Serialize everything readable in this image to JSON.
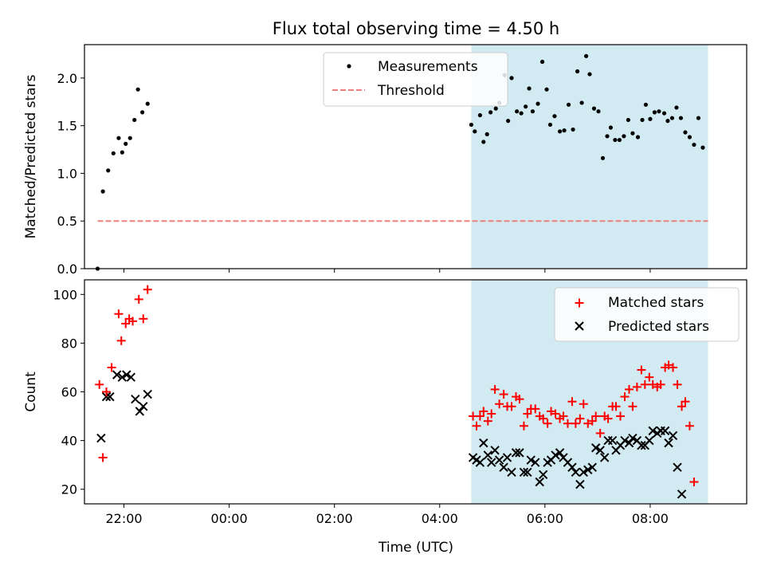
{
  "figure": {
    "title": "Flux total observing time = 4.50 h",
    "xlabel": "Time (UTC)"
  },
  "colors": {
    "band": "#add8e6",
    "threshold": "#f08080",
    "measurement": "#000000",
    "matched": "#ff0000",
    "predicted": "#000000"
  },
  "chart_data": [
    {
      "type": "scatter",
      "ylabel": "Matched/Predicted stars",
      "xlim": [
        "21:15",
        "09:50"
      ],
      "ylim": [
        0,
        2.35
      ],
      "x_ticks": [
        "22:00",
        "00:00",
        "02:00",
        "04:00",
        "06:00",
        "08:00"
      ],
      "x_tick_labels_shown": false,
      "y_ticks": [
        "0.0",
        "0.5",
        "1.0",
        "1.5",
        "2.0"
      ],
      "legend_position": "top-center",
      "shaded_interval": [
        "04:36",
        "09:06"
      ],
      "threshold": {
        "name": "Threshold",
        "value": 0.5,
        "x": [
          "21:30",
          "09:06"
        ]
      },
      "series": [
        {
          "name": "Measurements",
          "points": [
            [
              "21:30",
              0.0
            ],
            [
              "21:36",
              0.81
            ],
            [
              "21:42",
              1.03
            ],
            [
              "21:48",
              1.21
            ],
            [
              "21:54",
              1.37
            ],
            [
              "21:58",
              1.22
            ],
            [
              "22:02",
              1.31
            ],
            [
              "22:07",
              1.37
            ],
            [
              "22:12",
              1.56
            ],
            [
              "22:16",
              1.88
            ],
            [
              "22:21",
              1.64
            ],
            [
              "22:27",
              1.73
            ],
            [
              "04:36",
              1.51
            ],
            [
              "04:40",
              1.44
            ],
            [
              "04:46",
              1.61
            ],
            [
              "04:50",
              1.33
            ],
            [
              "04:54",
              1.41
            ],
            [
              "04:58",
              1.64
            ],
            [
              "05:04",
              1.68
            ],
            [
              "05:08",
              1.74
            ],
            [
              "05:14",
              2.03
            ],
            [
              "05:18",
              1.55
            ],
            [
              "05:22",
              2.0
            ],
            [
              "05:28",
              1.65
            ],
            [
              "05:33",
              1.63
            ],
            [
              "05:38",
              1.7
            ],
            [
              "05:42",
              1.89
            ],
            [
              "05:46",
              1.65
            ],
            [
              "05:52",
              1.73
            ],
            [
              "05:57",
              2.17
            ],
            [
              "06:02",
              1.88
            ],
            [
              "06:06",
              1.51
            ],
            [
              "06:11",
              1.6
            ],
            [
              "06:17",
              1.44
            ],
            [
              "06:22",
              1.45
            ],
            [
              "06:27",
              1.72
            ],
            [
              "06:32",
              1.46
            ],
            [
              "06:37",
              2.07
            ],
            [
              "06:42",
              1.74
            ],
            [
              "06:47",
              2.23
            ],
            [
              "06:51",
              2.04
            ],
            [
              "06:56",
              1.68
            ],
            [
              "07:01",
              1.65
            ],
            [
              "07:06",
              1.16
            ],
            [
              "07:11",
              1.39
            ],
            [
              "07:15",
              1.48
            ],
            [
              "07:20",
              1.35
            ],
            [
              "07:25",
              1.35
            ],
            [
              "07:30",
              1.39
            ],
            [
              "07:35",
              1.56
            ],
            [
              "07:40",
              1.42
            ],
            [
              "07:46",
              1.38
            ],
            [
              "07:51",
              1.56
            ],
            [
              "07:55",
              1.72
            ],
            [
              "08:00",
              1.57
            ],
            [
              "08:05",
              1.64
            ],
            [
              "08:10",
              1.65
            ],
            [
              "08:16",
              1.63
            ],
            [
              "08:20",
              1.55
            ],
            [
              "08:25",
              1.58
            ],
            [
              "08:30",
              1.69
            ],
            [
              "08:35",
              1.58
            ],
            [
              "08:40",
              1.43
            ],
            [
              "08:45",
              1.38
            ],
            [
              "08:50",
              1.3
            ],
            [
              "08:55",
              1.58
            ],
            [
              "09:00",
              1.27
            ]
          ]
        }
      ]
    },
    {
      "type": "scatter",
      "ylabel": "Count",
      "xlabel": "Time (UTC)",
      "xlim": [
        "21:15",
        "09:50"
      ],
      "ylim": [
        14,
        106
      ],
      "x_ticks": [
        "22:00",
        "00:00",
        "02:00",
        "04:00",
        "06:00",
        "08:00"
      ],
      "y_ticks": [
        "20",
        "40",
        "60",
        "80",
        "100"
      ],
      "legend_position": "top-right",
      "shaded_interval": [
        "04:36",
        "09:06"
      ],
      "series": [
        {
          "name": "Matched stars",
          "marker": "plus",
          "points": [
            [
              "21:32",
              63
            ],
            [
              "21:36",
              33
            ],
            [
              "21:40",
              60
            ],
            [
              "21:46",
              70
            ],
            [
              "21:54",
              92
            ],
            [
              "21:57",
              81
            ],
            [
              "22:02",
              88
            ],
            [
              "22:06",
              90
            ],
            [
              "22:10",
              89
            ],
            [
              "22:17",
              98
            ],
            [
              "22:22",
              90
            ],
            [
              "22:27",
              102
            ],
            [
              "04:38",
              50
            ],
            [
              "04:42",
              46
            ],
            [
              "04:46",
              50
            ],
            [
              "04:50",
              52
            ],
            [
              "04:55",
              48
            ],
            [
              "04:59",
              51
            ],
            [
              "05:03",
              61
            ],
            [
              "05:08",
              55
            ],
            [
              "05:13",
              59
            ],
            [
              "05:17",
              54
            ],
            [
              "05:22",
              54
            ],
            [
              "05:27",
              58
            ],
            [
              "05:31",
              57
            ],
            [
              "05:36",
              46
            ],
            [
              "05:40",
              51
            ],
            [
              "05:44",
              53
            ],
            [
              "05:49",
              53
            ],
            [
              "05:54",
              50
            ],
            [
              "05:58",
              49
            ],
            [
              "06:03",
              47
            ],
            [
              "06:07",
              52
            ],
            [
              "06:12",
              51
            ],
            [
              "06:17",
              49
            ],
            [
              "06:21",
              50
            ],
            [
              "06:26",
              47
            ],
            [
              "06:31",
              56
            ],
            [
              "06:35",
              47
            ],
            [
              "06:40",
              49
            ],
            [
              "06:44",
              55
            ],
            [
              "06:49",
              47
            ],
            [
              "06:54",
              48
            ],
            [
              "06:58",
              50
            ],
            [
              "07:03",
              43
            ],
            [
              "07:08",
              50
            ],
            [
              "07:12",
              49
            ],
            [
              "07:17",
              54
            ],
            [
              "07:21",
              54
            ],
            [
              "07:26",
              50
            ],
            [
              "07:31",
              58
            ],
            [
              "07:36",
              61
            ],
            [
              "07:40",
              54
            ],
            [
              "07:45",
              62
            ],
            [
              "07:50",
              69
            ],
            [
              "07:54",
              63
            ],
            [
              "07:59",
              66
            ],
            [
              "08:03",
              63
            ],
            [
              "08:08",
              62
            ],
            [
              "08:12",
              63
            ],
            [
              "08:17",
              70
            ],
            [
              "08:21",
              71
            ],
            [
              "08:26",
              70
            ],
            [
              "08:31",
              63
            ],
            [
              "08:36",
              54
            ],
            [
              "08:40",
              56
            ],
            [
              "08:45",
              46
            ],
            [
              "08:50",
              23
            ]
          ]
        },
        {
          "name": "Predicted stars",
          "marker": "x",
          "points": [
            [
              "21:34",
              41
            ],
            [
              "21:40",
              58
            ],
            [
              "21:44",
              58
            ],
            [
              "21:52",
              67
            ],
            [
              "21:58",
              66
            ],
            [
              "22:03",
              67
            ],
            [
              "22:08",
              66
            ],
            [
              "22:13",
              57
            ],
            [
              "22:18",
              52
            ],
            [
              "22:22",
              54
            ],
            [
              "22:27",
              59
            ],
            [
              "04:38",
              33
            ],
            [
              "04:42",
              32
            ],
            [
              "04:46",
              31
            ],
            [
              "04:50",
              39
            ],
            [
              "04:55",
              34
            ],
            [
              "04:59",
              31
            ],
            [
              "05:03",
              36
            ],
            [
              "05:08",
              32
            ],
            [
              "05:13",
              29
            ],
            [
              "05:17",
              33
            ],
            [
              "05:22",
              27
            ],
            [
              "05:27",
              35
            ],
            [
              "05:31",
              35
            ],
            [
              "05:36",
              27
            ],
            [
              "05:40",
              27
            ],
            [
              "05:44",
              32
            ],
            [
              "05:49",
              31
            ],
            [
              "05:54",
              23
            ],
            [
              "05:58",
              26
            ],
            [
              "06:03",
              31
            ],
            [
              "06:07",
              32
            ],
            [
              "06:12",
              34
            ],
            [
              "06:17",
              35
            ],
            [
              "06:21",
              33
            ],
            [
              "06:26",
              31
            ],
            [
              "06:31",
              29
            ],
            [
              "06:35",
              27
            ],
            [
              "06:40",
              22
            ],
            [
              "06:44",
              27
            ],
            [
              "06:49",
              28
            ],
            [
              "06:54",
              29
            ],
            [
              "06:58",
              37
            ],
            [
              "07:03",
              36
            ],
            [
              "07:08",
              33
            ],
            [
              "07:12",
              40
            ],
            [
              "07:17",
              40
            ],
            [
              "07:21",
              36
            ],
            [
              "07:26",
              38
            ],
            [
              "07:31",
              40
            ],
            [
              "07:36",
              39
            ],
            [
              "07:40",
              41
            ],
            [
              "07:45",
              40
            ],
            [
              "07:50",
              38
            ],
            [
              "07:54",
              38
            ],
            [
              "07:59",
              40
            ],
            [
              "08:03",
              44
            ],
            [
              "08:08",
              43
            ],
            [
              "08:12",
              44
            ],
            [
              "08:17",
              44
            ],
            [
              "08:21",
              39
            ],
            [
              "08:26",
              42
            ],
            [
              "08:31",
              29
            ],
            [
              "08:36",
              18
            ]
          ]
        }
      ]
    }
  ]
}
